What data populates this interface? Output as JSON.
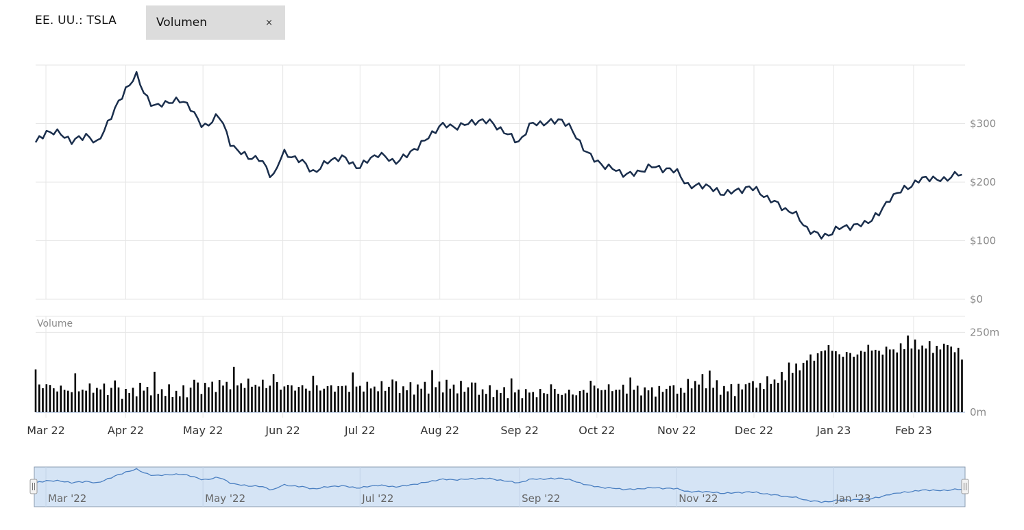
{
  "header": {
    "ticker": "EE. UU.: TSLA",
    "indicator_label": "Volumen",
    "close_glyph": "×"
  },
  "chart_data": {
    "type": "line",
    "price_axis": {
      "ticks": [
        "$0",
        "$100",
        "$200",
        "$300"
      ],
      "tick_values": [
        0,
        100,
        200,
        300
      ],
      "ylim": [
        0,
        400
      ]
    },
    "volume_axis": {
      "title": "Volume",
      "ticks": [
        "0m",
        "250m"
      ],
      "tick_values": [
        0,
        250
      ],
      "ylim": [
        0,
        300
      ]
    },
    "x_labels": [
      "Mar 22",
      "Apr 22",
      "May 22",
      "Jun 22",
      "Jul 22",
      "Aug 22",
      "Sep 22",
      "Oct 22",
      "Nov 22",
      "Dec 22",
      "Jan 23",
      "Feb 23"
    ],
    "x_label_days": [
      8,
      39,
      69,
      100,
      130,
      161,
      192,
      222,
      253,
      283,
      314,
      345
    ],
    "x_range_days": [
      4,
      365
    ],
    "navigator_labels": [
      "Mar '22",
      "May '22",
      "Jul '22",
      "Sep '22",
      "Nov '22",
      "Jan '23"
    ],
    "navigator_label_days": [
      8,
      69,
      130,
      192,
      253,
      314
    ],
    "price_series": {
      "days": [
        4,
        8,
        14,
        18,
        24,
        28,
        32,
        39,
        43,
        46,
        50,
        56,
        64,
        69,
        75,
        80,
        86,
        91,
        96,
        100,
        106,
        112,
        118,
        124,
        130,
        137,
        143,
        149,
        155,
        161,
        166,
        171,
        176,
        181,
        187,
        192,
        197,
        203,
        208,
        214,
        220,
        226,
        231,
        237,
        243,
        249,
        253,
        258,
        264,
        270,
        276,
        281,
        286,
        292,
        298,
        303,
        309,
        314,
        320,
        326,
        332,
        336,
        341,
        346,
        352,
        357,
        362,
        365
      ],
      "values": [
        268,
        290,
        280,
        268,
        285,
        262,
        300,
        362,
        382,
        350,
        330,
        340,
        330,
        295,
        312,
        265,
        245,
        236,
        210,
        252,
        236,
        220,
        236,
        240,
        228,
        246,
        238,
        245,
        270,
        300,
        290,
        300,
        308,
        298,
        285,
        270,
        298,
        304,
        308,
        276,
        244,
        222,
        218,
        215,
        224,
        226,
        218,
        188,
        200,
        178,
        184,
        196,
        176,
        164,
        150,
        120,
        110,
        115,
        124,
        132,
        143,
        175,
        190,
        197,
        210,
        204,
        214,
        201
      ]
    },
    "volume_series": {
      "days": [
        4,
        15,
        30,
        39,
        45,
        60,
        69,
        80,
        95,
        110,
        130,
        150,
        161,
        180,
        200,
        215,
        222,
        240,
        253,
        262,
        272,
        283,
        295,
        305,
        310,
        320,
        330,
        340,
        345,
        356,
        365
      ],
      "values": [
        90,
        70,
        75,
        60,
        75,
        60,
        80,
        90,
        85,
        75,
        80,
        75,
        85,
        65,
        60,
        60,
        75,
        70,
        65,
        100,
        70,
        80,
        110,
        170,
        190,
        180,
        190,
        200,
        210,
        200,
        185
      ]
    },
    "colors": {
      "price_line": "#1a2e4c",
      "volume_bar": "#000000",
      "grid": "#e6e6e6",
      "axis_text": "#8a8a8a",
      "navigator_fill": "#d5e4f5",
      "navigator_line": "#4a7fc1",
      "navigator_border": "#8a9bb0"
    }
  }
}
